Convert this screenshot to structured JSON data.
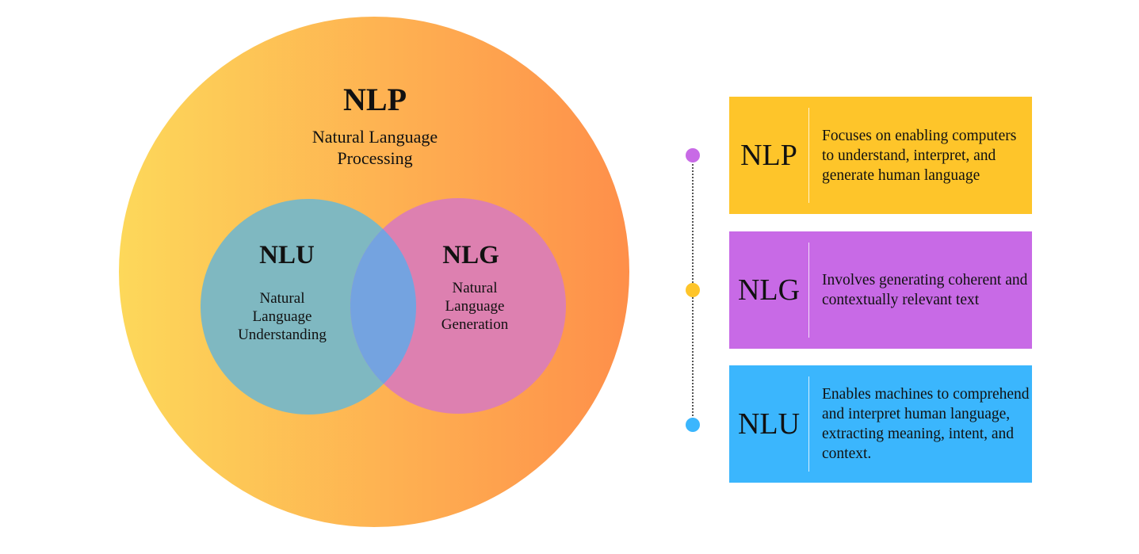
{
  "venn": {
    "outer": {
      "abbr": "NLP",
      "name": "Natural Language\nProcessing",
      "gradient": [
        "#fdd85a",
        "#fe8f4a"
      ]
    },
    "left": {
      "abbr": "NLU",
      "name": "Natural\nLanguage\nUnderstanding",
      "color": "#7fb8c1"
    },
    "right": {
      "abbr": "NLG",
      "name": "Natural\nLanguage\nGeneration",
      "color": "#dd80b0"
    },
    "overlap_color": "#74a3e0"
  },
  "timeline": {
    "dots": [
      "#c86ae6",
      "#fec52a",
      "#3bb6fd"
    ],
    "items": [
      {
        "abbr": "NLP",
        "desc": "Focuses on enabling computers to understand, interpret, and generate human language",
        "color": "#fec52a"
      },
      {
        "abbr": "NLG",
        "desc": "Involves generating coherent and contextually relevant text",
        "color": "#c86ae6"
      },
      {
        "abbr": "NLU",
        "desc": "Enables machines to comprehend and interpret human language, extracting meaning, intent, and context.",
        "color": "#3bb6fd"
      }
    ]
  }
}
